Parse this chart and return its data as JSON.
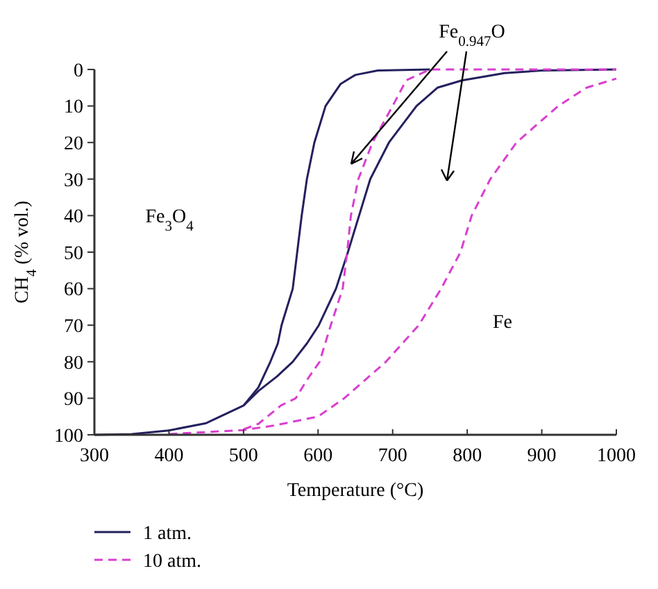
{
  "chart_data": {
    "type": "line",
    "xlabel": "Temperature (°C)",
    "ylabel": "CH$_{4}$ (% vol.)",
    "xlim": [
      300,
      1000
    ],
    "xticks": [
      300,
      400,
      500,
      600,
      700,
      800,
      900,
      1000
    ],
    "ylim": [
      100,
      0
    ],
    "yticks": [
      0,
      10,
      20,
      30,
      40,
      50,
      60,
      70,
      80,
      90,
      100
    ],
    "grid": false,
    "legend": "bottom",
    "series": [
      {
        "name": "1 atm.",
        "color": "#24205e",
        "line_style": "solid",
        "x": [
          300,
          350,
          400,
          450,
          500,
          520,
          536,
          546,
          551,
          566,
          572,
          578,
          585,
          595,
          610,
          630,
          650,
          680,
          750
        ],
        "values": [
          100,
          99.8,
          98.8,
          96.8,
          92,
          87,
          80,
          75,
          70,
          60,
          50,
          40,
          30,
          20,
          10,
          4,
          1.5,
          0.3,
          0
        ]
      },
      {
        "color": "#24205e",
        "line_style": "solid",
        "x": [
          500,
          520,
          545,
          566,
          585,
          601,
          624,
          640,
          655,
          670,
          695,
          732,
          760,
          793,
          850,
          900,
          1000
        ],
        "values": [
          92,
          88,
          84,
          80,
          75,
          70,
          60,
          50,
          40,
          30,
          20,
          10,
          5,
          3,
          1,
          0.3,
          0
        ]
      },
      {
        "name": "10 atm.",
        "color": "#d93fd0",
        "line_style": "dashed",
        "x": [
          500,
          520,
          550,
          570,
          585,
          602,
          617,
          633,
          639,
          644,
          654,
          673,
          700,
          718,
          750,
          800,
          1000
        ],
        "values": [
          98.5,
          97,
          92,
          90,
          85,
          80,
          70,
          60,
          50,
          40,
          30,
          20,
          10,
          3,
          0,
          0,
          0
        ]
      },
      {
        "color": "#d93fd0",
        "line_style": "dashed",
        "x": [
          400,
          500,
          540,
          600,
          635,
          691,
          735,
          765,
          791,
          806,
          831,
          866,
          922,
          960,
          1000
        ],
        "values": [
          99.8,
          98.7,
          97.5,
          95,
          90,
          80,
          70,
          60,
          50,
          40,
          30,
          20,
          10,
          5,
          2.5
        ]
      }
    ],
    "annotations": [
      "Fe$_{3}$O$_{4}$",
      "Fe",
      "Fe$_{0.947}$O"
    ]
  }
}
